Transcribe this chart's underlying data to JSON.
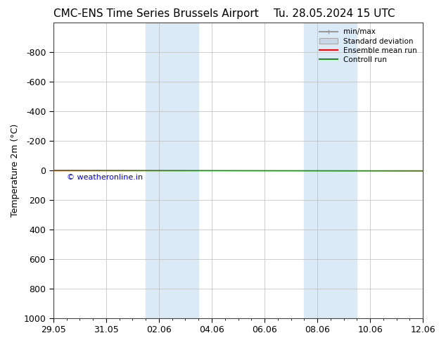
{
  "title_left": "CMC-ENS Time Series Brussels Airport",
  "title_right": "Tu. 28.05.2024 15 UTC",
  "ylabel": "Temperature 2m (°C)",
  "ylim": [
    -1000,
    1000
  ],
  "yticks": [
    -800,
    -600,
    -400,
    -200,
    0,
    200,
    400,
    600,
    800,
    1000
  ],
  "ytick_labels": [
    "-800",
    "-600",
    "-400",
    "-200",
    "0",
    "200",
    "400",
    "600",
    "800",
    "1000"
  ],
  "xtick_labels": [
    "29.05",
    "31.05",
    "02.06",
    "04.06",
    "06.06",
    "08.06",
    "10.06",
    "12.06"
  ],
  "xtick_positions": [
    0,
    2,
    4,
    6,
    8,
    10,
    12,
    14
  ],
  "shaded_bands": [
    {
      "x_start": 3.5,
      "x_end": 5.5
    },
    {
      "x_start": 9.5,
      "x_end": 11.5
    }
  ],
  "band_color": "#daeaf7",
  "control_run_color": "#228B22",
  "ensemble_mean_color": "#ff0000",
  "minmax_color": "#999999",
  "stddev_color": "#c8d8e8",
  "watermark": "© weatheronline.in",
  "watermark_color": "#0000cc",
  "bg_color": "#ffffff",
  "grid_color": "#bbbbbb",
  "title_fontsize": 11,
  "label_fontsize": 9,
  "tick_fontsize": 9
}
